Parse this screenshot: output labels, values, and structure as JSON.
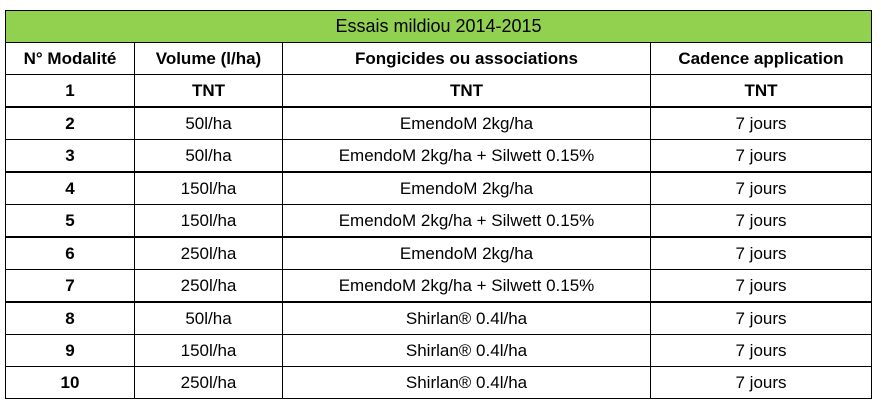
{
  "table": {
    "title": "Essais mildiou 2014-2015",
    "header": [
      "N° Modalité",
      "Volume (l/ha)",
      "Fongicides ou associations",
      "Cadence application"
    ],
    "rows": [
      [
        "1",
        "TNT",
        "TNT",
        "TNT"
      ],
      [
        "2",
        "50l/ha",
        "EmendoM 2kg/ha",
        "7 jours"
      ],
      [
        "3",
        "50l/ha",
        "EmendoM 2kg/ha + Silwett 0.15%",
        "7 jours"
      ],
      [
        "4",
        "150l/ha",
        "EmendoM 2kg/ha",
        "7 jours"
      ],
      [
        "5",
        "150l/ha",
        "EmendoM 2kg/ha + Silwett 0.15%",
        "7 jours"
      ],
      [
        "6",
        "250l/ha",
        "EmendoM 2kg/ha",
        "7 jours"
      ],
      [
        "7",
        "250l/ha",
        "EmendoM 2kg/ha + Silwett 0.15%",
        "7 jours"
      ],
      [
        "8",
        "50l/ha",
        "Shirlan® 0.4l/ha",
        "7 jours"
      ],
      [
        "9",
        "150l/ha",
        "Shirlan® 0.4l/ha",
        "7 jours"
      ],
      [
        "10",
        "250l/ha",
        "Shirlan® 0.4l/ha",
        "7 jours"
      ]
    ]
  }
}
